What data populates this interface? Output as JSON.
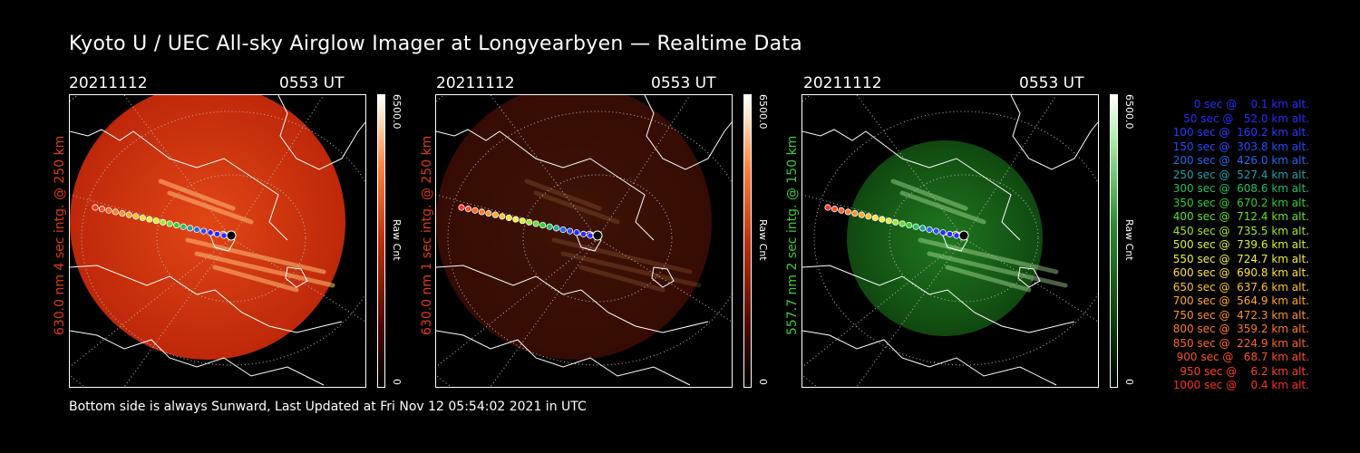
{
  "title": "Kyoto U / UEC All-sky Airglow Imager at Longyearbyen — Realtime Data",
  "footer": "Bottom side is always Sunward, Last Updated at Fri Nov 12 05:54:02 2021 in UTC",
  "panels": [
    {
      "date": "20211112",
      "time": "0553 UT",
      "side_label": "630.0 nm 4 sec intg. @ 250 km",
      "label_color": "#e03a1a",
      "cbar_max": "6500.0",
      "cbar_min": "0",
      "cbar_unit": "Raw Cnt",
      "tint": "red",
      "intensity": 1.0
    },
    {
      "date": "20211112",
      "time": "0553 UT",
      "side_label": "630.0 nm 1 sec intg. @ 250 km",
      "label_color": "#e03a1a",
      "cbar_max": "6500.0",
      "cbar_min": "0",
      "cbar_unit": "Raw Cnt",
      "tint": "red",
      "intensity": 0.28
    },
    {
      "date": "20211112",
      "time": "0553 UT",
      "side_label": "557.7 nm 2 sec intg. @ 150 km",
      "label_color": "#3ec83e",
      "cbar_max": "6500.0",
      "cbar_min": "0",
      "cbar_unit": "Raw Cnt",
      "tint": "green",
      "intensity": 0.8
    }
  ],
  "legend": [
    {
      "text": "0 sec @    0.1 km alt.",
      "color": "#2a2aff"
    },
    {
      "text": "50 sec @   52.0 km alt.",
      "color": "#2a2aff"
    },
    {
      "text": "100 sec @  160.2 km alt.",
      "color": "#2a3aff"
    },
    {
      "text": "150 sec @  303.8 km alt.",
      "color": "#2a4aff"
    },
    {
      "text": "200 sec @  426.0 km alt.",
      "color": "#2a66ee"
    },
    {
      "text": "250 sec @  527.4 km alt.",
      "color": "#22a0a8"
    },
    {
      "text": "300 sec @  608.6 km alt.",
      "color": "#22c060"
    },
    {
      "text": "350 sec @  670.2 km alt.",
      "color": "#30d030"
    },
    {
      "text": "400 sec @  712.4 km alt.",
      "color": "#60e030"
    },
    {
      "text": "450 sec @  735.5 km alt.",
      "color": "#a0e830"
    },
    {
      "text": "500 sec @  739.6 km alt.",
      "color": "#d8f030"
    },
    {
      "text": "550 sec @  724.7 km alt.",
      "color": "#f0f040"
    },
    {
      "text": "600 sec @  690.8 km alt.",
      "color": "#ffe040"
    },
    {
      "text": "650 sec @  637.6 km alt.",
      "color": "#ffc030"
    },
    {
      "text": "700 sec @  564.9 km alt.",
      "color": "#ffa828"
    },
    {
      "text": "750 sec @  472.3 km alt.",
      "color": "#ff9028"
    },
    {
      "text": "800 sec @  359.2 km alt.",
      "color": "#ff7a28"
    },
    {
      "text": "850 sec @  224.9 km alt.",
      "color": "#ff6428"
    },
    {
      "text": "900 sec @   68.7 km alt.",
      "color": "#ff5028"
    },
    {
      "text": "950 sec @    6.2 km alt.",
      "color": "#ff4028"
    },
    {
      "text": "1000 sec @    0.4 km alt.",
      "color": "#ff3020"
    }
  ],
  "track_colors": [
    "#ff3020",
    "#ff4a28",
    "#ff6428",
    "#ff7a28",
    "#ff9028",
    "#ffa828",
    "#ffc030",
    "#ffe040",
    "#f0f040",
    "#d8f030",
    "#a0e830",
    "#60e030",
    "#30d030",
    "#22c060",
    "#22a0a8",
    "#2a66ee",
    "#2a4aff",
    "#2a2aff",
    "#2a2aff",
    "#2a2aff"
  ]
}
